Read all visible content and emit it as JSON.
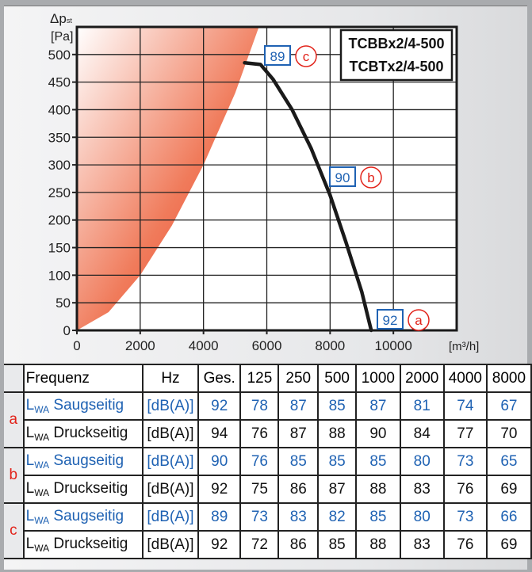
{
  "chart_data": {
    "type": "line",
    "title": "",
    "models": [
      "TCBBx2/4-500",
      "TCBTx2/4-500"
    ],
    "ylabel": "Δp",
    "ylabel_sub": "st",
    "yunit": "[Pa]",
    "xunit": "[m³/h]",
    "xlim": [
      0,
      12000
    ],
    "ylim": [
      0,
      550
    ],
    "xticks": [
      0,
      2000,
      4000,
      6000,
      8000,
      10000
    ],
    "yticks": [
      0,
      50,
      100,
      150,
      200,
      250,
      300,
      350,
      400,
      450,
      500
    ],
    "grid": true,
    "series": [
      {
        "x": [
          5300,
          5800,
          6200,
          6800,
          7400,
          8000,
          8500,
          9000,
          9300
        ],
        "y": [
          485,
          482,
          455,
          400,
          330,
          245,
          160,
          70,
          0
        ]
      }
    ],
    "forbidden_zone": {
      "description_color": "#e8321f",
      "x": [
        0,
        1000,
        2000,
        3000,
        4000,
        5000,
        5750
      ],
      "y": [
        0,
        33,
        100,
        190,
        300,
        430,
        550
      ]
    },
    "operating_points": [
      {
        "label": "c",
        "value": "89"
      },
      {
        "label": "b",
        "value": "90"
      },
      {
        "label": "a",
        "value": "92"
      }
    ],
    "colors": {
      "curve": "#1a1a1a",
      "zone": "#e8321f",
      "value_box": "#1f62b3",
      "marker": "#e2231a"
    }
  },
  "table": {
    "header": [
      "Frequenz",
      "Hz",
      "Ges.",
      "125",
      "250",
      "500",
      "1000",
      "2000",
      "4000",
      "8000"
    ],
    "groups": [
      {
        "label": "a",
        "rows": [
          {
            "sub": "WA",
            "name": "Saugseitig",
            "unit": "[dB(A)]",
            "values": [
              "92",
              "78",
              "87",
              "85",
              "87",
              "81",
              "74",
              "67"
            ],
            "color": "blue"
          },
          {
            "sub": "WA",
            "name": "Druckseitig",
            "unit": "[dB(A)]",
            "values": [
              "94",
              "76",
              "87",
              "88",
              "90",
              "84",
              "77",
              "70"
            ],
            "color": "black"
          }
        ]
      },
      {
        "label": "b",
        "rows": [
          {
            "sub": "WA",
            "name": "Saugseitig",
            "unit": "[dB(A)]",
            "values": [
              "90",
              "76",
              "85",
              "85",
              "85",
              "80",
              "73",
              "65"
            ],
            "color": "blue"
          },
          {
            "sub": "WA",
            "name": "Druckseitig",
            "unit": "[dB(A)]",
            "values": [
              "92",
              "75",
              "86",
              "87",
              "88",
              "83",
              "76",
              "69"
            ],
            "color": "black"
          }
        ]
      },
      {
        "label": "c",
        "rows": [
          {
            "sub": "WA",
            "name": "Saugseitig",
            "unit": "[dB(A)]",
            "values": [
              "89",
              "73",
              "83",
              "82",
              "85",
              "80",
              "73",
              "66"
            ],
            "color": "blue"
          },
          {
            "sub": "WA",
            "name": "Druckseitig",
            "unit": "[dB(A)]",
            "values": [
              "92",
              "72",
              "86",
              "85",
              "88",
              "83",
              "76",
              "69"
            ],
            "color": "black"
          }
        ]
      }
    ],
    "row_prefix": "L"
  }
}
